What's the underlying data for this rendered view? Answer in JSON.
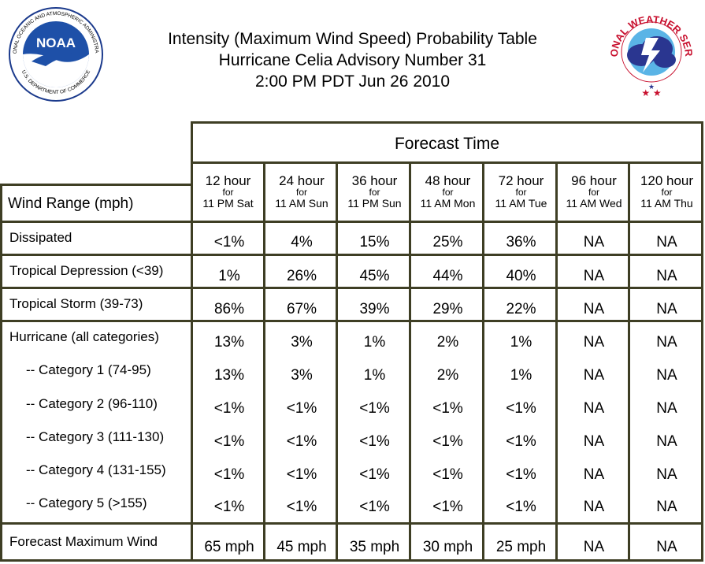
{
  "header": {
    "title_lines": [
      "Intensity (Maximum Wind Speed) Probability Table",
      "Hurricane Celia Advisory Number 31",
      "2:00 PM PDT Jun 26 2010"
    ],
    "left_logo": {
      "text": "NOAA",
      "ring_text": "NATIONAL OCEANIC AND ATMOSPHERIC ADMINISTRATION",
      "bottom_text": "U.S. DEPARTMENT OF COMMERCE",
      "icon": "noaa-logo"
    },
    "right_logo": {
      "ring_text": "NATIONAL WEATHER SERVICE",
      "icon": "nws-logo"
    }
  },
  "table": {
    "group_header": "Forecast Time",
    "row_header_label": "Wind Range (mph)",
    "columns": [
      {
        "hour": "12 hour",
        "for": "for",
        "when": "11 PM Sat"
      },
      {
        "hour": "24 hour",
        "for": "for",
        "when": "11 AM Sun"
      },
      {
        "hour": "36 hour",
        "for": "for",
        "when": "11 PM Sun"
      },
      {
        "hour": "48 hour",
        "for": "for",
        "when": "11 AM Mon"
      },
      {
        "hour": "72 hour",
        "for": "for",
        "when": "11 AM Tue"
      },
      {
        "hour": "96 hour",
        "for": "for",
        "when": "11 AM Wed"
      },
      {
        "hour": "120 hour",
        "for": "for",
        "when": "11 AM Thu"
      }
    ],
    "rows": [
      {
        "label": "Dissipated",
        "values": [
          "<1%",
          "4%",
          "15%",
          "25%",
          "36%",
          "NA",
          "NA"
        ]
      },
      {
        "label": "Tropical Depression (<39)",
        "values": [
          "1%",
          "26%",
          "45%",
          "44%",
          "40%",
          "NA",
          "NA"
        ]
      },
      {
        "label": "Tropical Storm (39-73)",
        "values": [
          "86%",
          "67%",
          "39%",
          "29%",
          "22%",
          "NA",
          "NA"
        ]
      },
      {
        "label": "Hurricane (all categories)",
        "values": [
          "13%",
          "3%",
          "1%",
          "2%",
          "1%",
          "NA",
          "NA"
        ]
      },
      {
        "label": "-- Category 1 (74-95)",
        "values": [
          "13%",
          "3%",
          "1%",
          "2%",
          "1%",
          "NA",
          "NA"
        ]
      },
      {
        "label": "-- Category 2 (96-110)",
        "values": [
          "<1%",
          "<1%",
          "<1%",
          "<1%",
          "<1%",
          "NA",
          "NA"
        ]
      },
      {
        "label": "-- Category 3 (111-130)",
        "values": [
          "<1%",
          "<1%",
          "<1%",
          "<1%",
          "<1%",
          "NA",
          "NA"
        ]
      },
      {
        "label": "-- Category 4 (131-155)",
        "values": [
          "<1%",
          "<1%",
          "<1%",
          "<1%",
          "<1%",
          "NA",
          "NA"
        ]
      },
      {
        "label": "-- Category 5 (>155)",
        "values": [
          "<1%",
          "<1%",
          "<1%",
          "<1%",
          "<1%",
          "NA",
          "NA"
        ]
      },
      {
        "label": "Forecast Maximum Wind",
        "values": [
          "65 mph",
          "45 mph",
          "35 mph",
          "30 mph",
          "25 mph",
          "NA",
          "NA"
        ]
      }
    ]
  }
}
